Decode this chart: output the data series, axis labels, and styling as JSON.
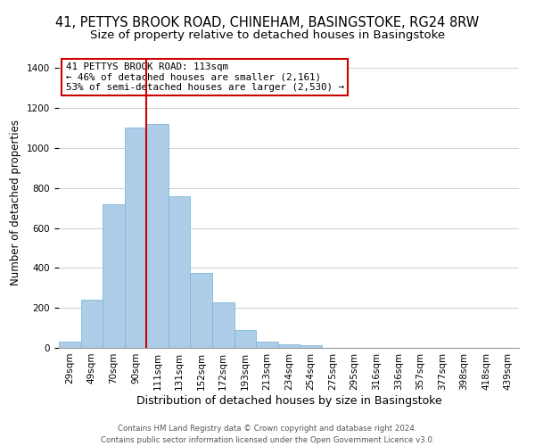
{
  "title": "41, PETTYS BROOK ROAD, CHINEHAM, BASINGSTOKE, RG24 8RW",
  "subtitle": "Size of property relative to detached houses in Basingstoke",
  "xlabel": "Distribution of detached houses by size in Basingstoke",
  "ylabel": "Number of detached properties",
  "bar_color": "#aecde8",
  "bar_edge_color": "#7db8d8",
  "bin_labels": [
    "29sqm",
    "49sqm",
    "70sqm",
    "90sqm",
    "111sqm",
    "131sqm",
    "152sqm",
    "172sqm",
    "193sqm",
    "213sqm",
    "234sqm",
    "254sqm",
    "275sqm",
    "295sqm",
    "316sqm",
    "336sqm",
    "357sqm",
    "377sqm",
    "398sqm",
    "418sqm",
    "439sqm"
  ],
  "bar_heights": [
    30,
    240,
    720,
    1100,
    1120,
    760,
    375,
    228,
    90,
    30,
    20,
    15,
    0,
    0,
    0,
    0,
    0,
    0,
    0,
    0,
    0
  ],
  "vline_x": 4.0,
  "annotation_title": "41 PETTYS BROOK ROAD: 113sqm",
  "annotation_line1": "← 46% of detached houses are smaller (2,161)",
  "annotation_line2": "53% of semi-detached houses are larger (2,530) →",
  "annotation_box_color": "white",
  "annotation_border_color": "#cc0000",
  "vline_color": "#cc0000",
  "ylim": [
    0,
    1450
  ],
  "yticks": [
    0,
    200,
    400,
    600,
    800,
    1000,
    1200,
    1400
  ],
  "footer1": "Contains HM Land Registry data © Crown copyright and database right 2024.",
  "footer2": "Contains public sector information licensed under the Open Government Licence v3.0.",
  "title_fontsize": 10.5,
  "subtitle_fontsize": 9.5,
  "xlabel_fontsize": 9,
  "ylabel_fontsize": 8.5,
  "tick_fontsize": 7.5,
  "annotation_fontsize": 7.8,
  "footer_fontsize": 6.2
}
